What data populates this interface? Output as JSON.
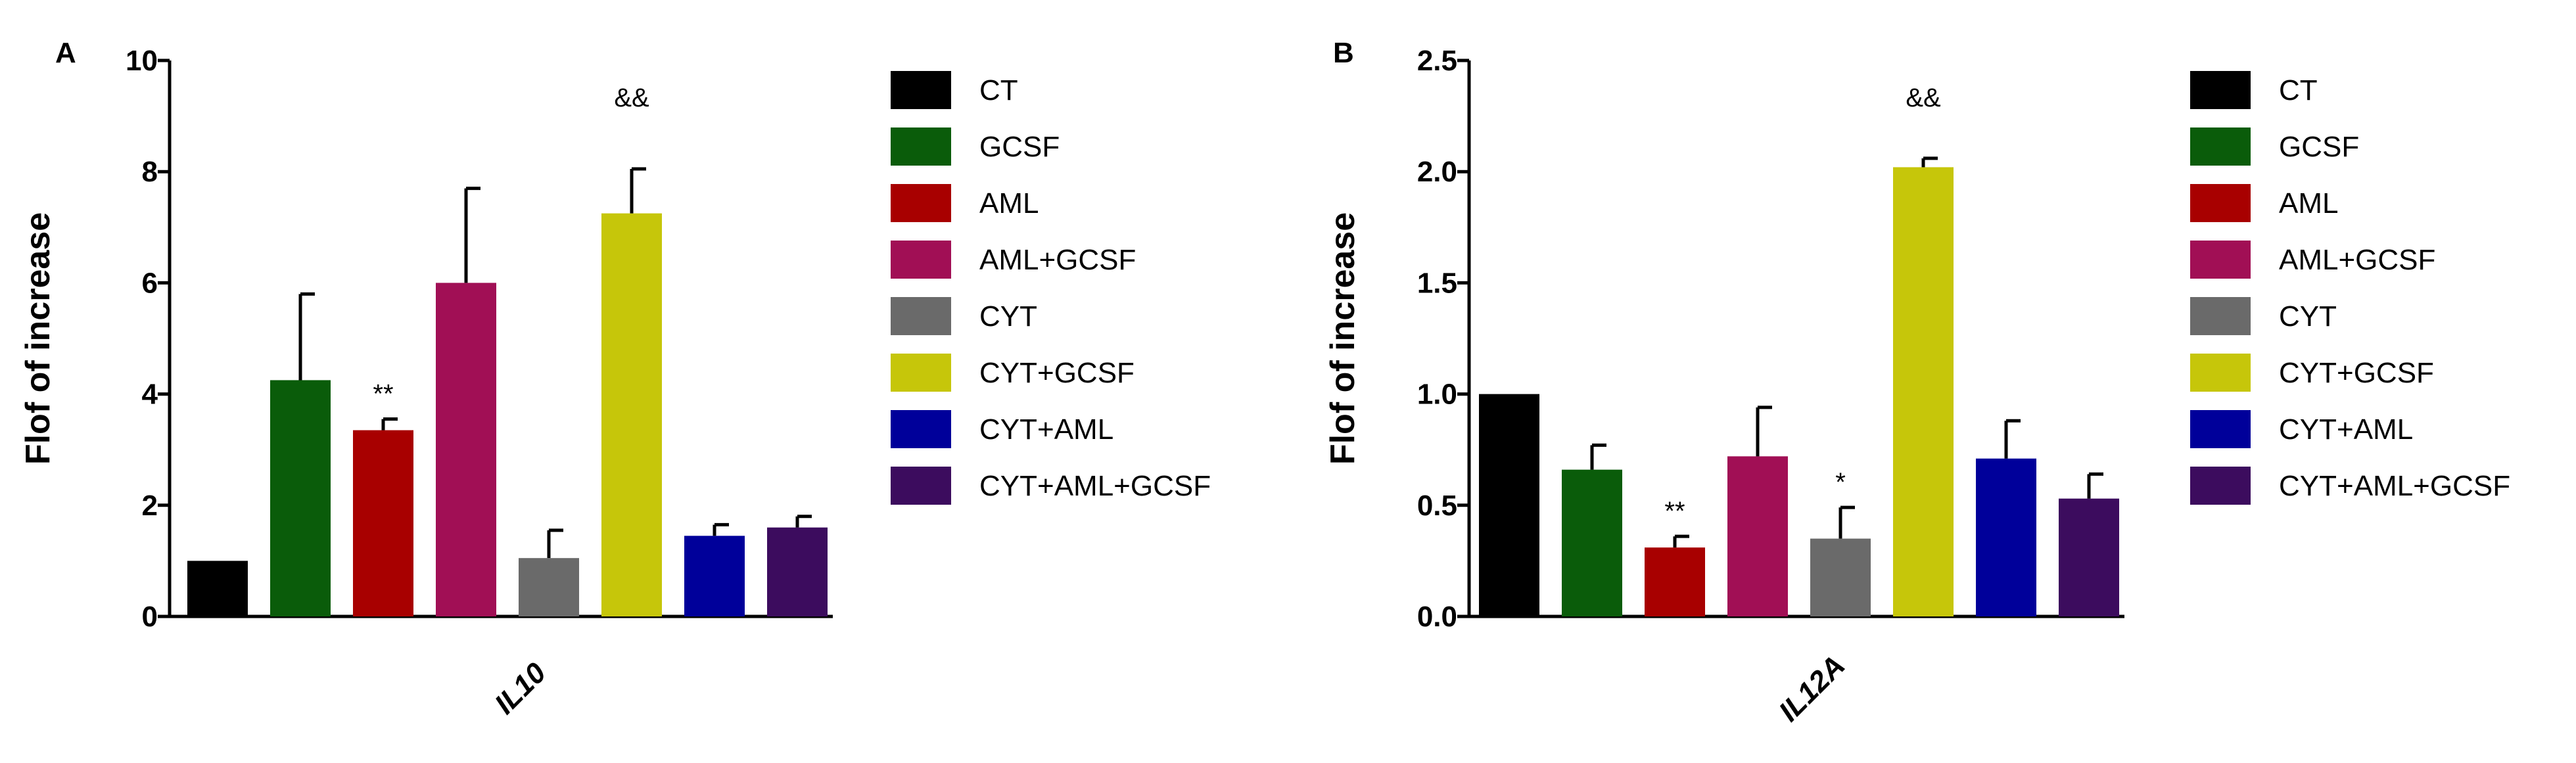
{
  "chart_data": [
    {
      "panel": "A",
      "type": "bar",
      "title": "",
      "xlabel": "IL10",
      "ylabel": "Flof of increase",
      "ylim": [
        0,
        10
      ],
      "yticks": [
        0,
        2,
        4,
        6,
        8,
        10
      ],
      "yticklabels": [
        "0",
        "2",
        "4",
        "6",
        "8",
        "10"
      ],
      "categories": [
        "CT",
        "GCSF",
        "AML",
        "AML+GCSF",
        "CYT",
        "CYT+GCSF",
        "CYT+AML",
        "CYT+AML+GCSF"
      ],
      "values": [
        1.0,
        4.25,
        3.35,
        6.0,
        1.05,
        7.25,
        1.45,
        1.6
      ],
      "errors": [
        0.0,
        1.55,
        0.2,
        1.7,
        0.5,
        0.8,
        0.2,
        0.2
      ],
      "annotations": [
        "",
        "",
        "**",
        "",
        "",
        "&&",
        "",
        ""
      ]
    },
    {
      "panel": "B",
      "type": "bar",
      "title": "",
      "xlabel": "IL12A",
      "ylabel": "Flof of increase",
      "ylim": [
        0,
        2.5
      ],
      "yticks": [
        0,
        0.5,
        1.0,
        1.5,
        2.0,
        2.5
      ],
      "yticklabels": [
        "0.0",
        "0.5",
        "1.0",
        "1.5",
        "2.0",
        "2.5"
      ],
      "categories": [
        "CT",
        "GCSF",
        "AML",
        "AML+GCSF",
        "CYT",
        "CYT+GCSF",
        "CYT+AML",
        "CYT+AML+GCSF"
      ],
      "values": [
        1.0,
        0.66,
        0.31,
        0.72,
        0.35,
        2.02,
        0.71,
        0.53
      ],
      "errors": [
        0.0,
        0.11,
        0.05,
        0.22,
        0.14,
        0.04,
        0.17,
        0.11
      ],
      "annotations": [
        "",
        "",
        "**",
        "",
        "*",
        "&&",
        "",
        ""
      ]
    }
  ],
  "legend": {
    "placement": "right",
    "entries": [
      "CT",
      "GCSF",
      "AML",
      "AML+GCSF",
      "CYT",
      "CYT+GCSF",
      "CYT+AML",
      "CYT+AML+GCSF"
    ],
    "colors": [
      "#000000",
      "#0a5c0a",
      "#a80000",
      "#a10f55",
      "#6a6a6a",
      "#c6c60a",
      "#00009a",
      "#3c0c5e"
    ]
  }
}
